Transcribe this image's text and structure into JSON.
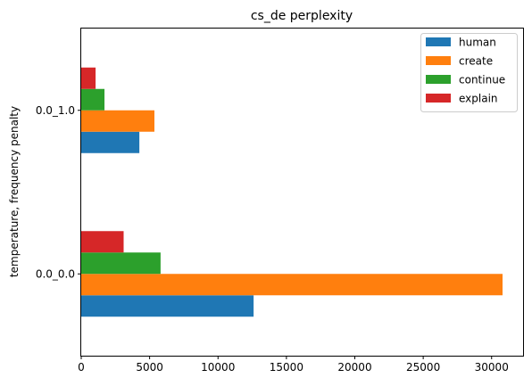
{
  "chart_data": {
    "type": "bar",
    "orientation": "horizontal",
    "title": "cs_de perplexity",
    "xlabel": "",
    "ylabel": "temperature, frequency penalty",
    "categories": [
      "0.0_0.0",
      "0.0_1.0"
    ],
    "series": [
      {
        "name": "human",
        "color": "#1f77b4",
        "values": [
          12600,
          4250
        ]
      },
      {
        "name": "create",
        "color": "#ff7f0e",
        "values": [
          30800,
          5350
        ]
      },
      {
        "name": "continue",
        "color": "#2ca02c",
        "values": [
          5800,
          1700
        ]
      },
      {
        "name": "explain",
        "color": "#d62728",
        "values": [
          3100,
          1050
        ]
      }
    ],
    "xlim": [
      0,
      32300
    ],
    "xticks": [
      0,
      5000,
      10000,
      15000,
      20000,
      25000,
      30000
    ],
    "grid": false,
    "legend_position": "top-right"
  }
}
